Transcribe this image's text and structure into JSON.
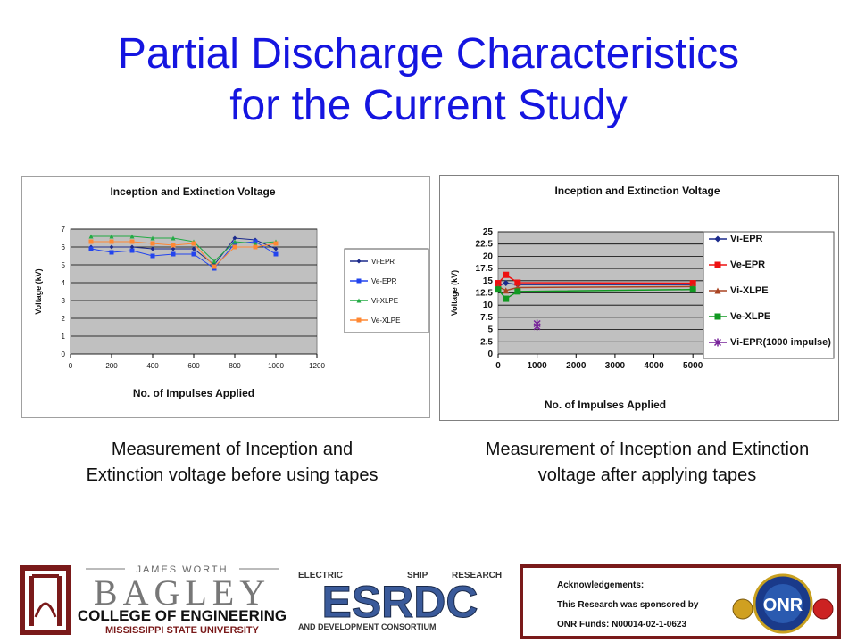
{
  "page": {
    "title_line1": "Partial Discharge Characteristics",
    "title_line2": "for the Current Study",
    "caption_left_line1": "Measurement of Inception and",
    "caption_left_line2": "Extinction voltage before using tapes",
    "caption_right_line1": "Measurement of Inception and Extinction",
    "caption_right_line2": "voltage after applying tapes"
  },
  "chart_data": [
    {
      "type": "line",
      "title": "Inception and Extinction Voltage",
      "xlabel": "No. of Impulses Applied",
      "ylabel": "Voltage (kV)",
      "xlim": [
        0,
        1200
      ],
      "ylim": [
        0,
        7
      ],
      "x_ticks": [
        "0",
        "200",
        "400",
        "600",
        "800",
        "1000",
        "1200"
      ],
      "y_ticks": [
        "0",
        "1",
        "2",
        "3",
        "4",
        "5",
        "6",
        "7"
      ],
      "grid": true,
      "legend_position": "right",
      "plot_background": "#c0c0c0",
      "x": [
        100,
        200,
        300,
        400,
        500,
        600,
        700,
        800,
        900,
        1000
      ],
      "series": [
        {
          "name": "Vi-EPR",
          "color": "#1b2a8c",
          "marker": "diamond",
          "values": [
            6.0,
            6.0,
            6.0,
            5.9,
            5.9,
            5.9,
            5.0,
            6.5,
            6.4,
            5.9
          ]
        },
        {
          "name": "Ve-EPR",
          "color": "#2244ee",
          "marker": "square",
          "values": [
            5.9,
            5.7,
            5.8,
            5.5,
            5.6,
            5.6,
            4.8,
            6.2,
            6.3,
            5.6
          ]
        },
        {
          "name": "Vi-XLPE",
          "color": "#22aa44",
          "marker": "triangle",
          "values": [
            6.6,
            6.6,
            6.6,
            6.5,
            6.5,
            6.3,
            5.2,
            6.3,
            6.2,
            6.3
          ]
        },
        {
          "name": "Ve-XLPE",
          "color": "#ff8833",
          "marker": "square",
          "values": [
            6.3,
            6.3,
            6.3,
            6.2,
            6.1,
            6.2,
            4.9,
            6.0,
            6.0,
            6.2
          ]
        }
      ]
    },
    {
      "type": "line",
      "title": "Inception and Extinction Voltage",
      "xlabel": "No. of Impulses Applied",
      "ylabel": "Voltage (kV)",
      "xlim": [
        0,
        5500
      ],
      "ylim": [
        0,
        25
      ],
      "x_ticks": [
        "0",
        "1000",
        "2000",
        "3000",
        "4000",
        "5000"
      ],
      "y_ticks": [
        "0",
        "2.5",
        "5",
        "7.5",
        "10",
        "12.5",
        "15",
        "17.5",
        "20",
        "22.5",
        "25"
      ],
      "grid": true,
      "legend_position": "right",
      "plot_background": "#c0c0c0",
      "series": [
        {
          "name": "Vi-EPR",
          "color": "#1b2a8c",
          "marker": "diamond",
          "x": [
            0,
            200,
            500,
            5000
          ],
          "values": [
            14.0,
            14.5,
            14.2,
            14.2
          ]
        },
        {
          "name": "Ve-EPR",
          "color": "#ee1111",
          "marker": "square",
          "x": [
            0,
            200,
            500,
            5000
          ],
          "values": [
            14.5,
            16.2,
            14.6,
            14.5
          ]
        },
        {
          "name": "Vi-XLPE",
          "color": "#aa4422",
          "marker": "triangle",
          "x": [
            0,
            200,
            500,
            5000
          ],
          "values": [
            13.8,
            13.0,
            13.6,
            13.8
          ]
        },
        {
          "name": "Ve-XLPE",
          "color": "#119922",
          "marker": "square",
          "x": [
            0,
            200,
            500,
            5000
          ],
          "values": [
            13.2,
            11.3,
            12.8,
            13.2
          ]
        },
        {
          "name": "Vi-EPR(1000 impulse)",
          "color": "#772299",
          "marker": "star",
          "x": [
            1000,
            1000
          ],
          "values": [
            6.2,
            5.6
          ]
        }
      ]
    }
  ],
  "footer": {
    "bagley_top": "JAMES WORTH",
    "bagley_main": "BAGLEY",
    "bagley_college": "COLLEGE OF ENGINEERING",
    "bagley_univ": "MISSISSIPPI STATE UNIVERSITY",
    "esrdc_top_left": "ELECTRIC",
    "esrdc_top_mid": "SHIP",
    "esrdc_top_right": "RESEARCH",
    "esrdc_main": "ESRDC",
    "esrdc_bottom": "AND DEVELOPMENT CONSORTIUM",
    "ack_line1": "Acknowledgements:",
    "ack_line2": "This Research was sponsored by",
    "ack_line3": "ONR Funds: N00014-02-1-0623",
    "onr_text": "ONR"
  }
}
